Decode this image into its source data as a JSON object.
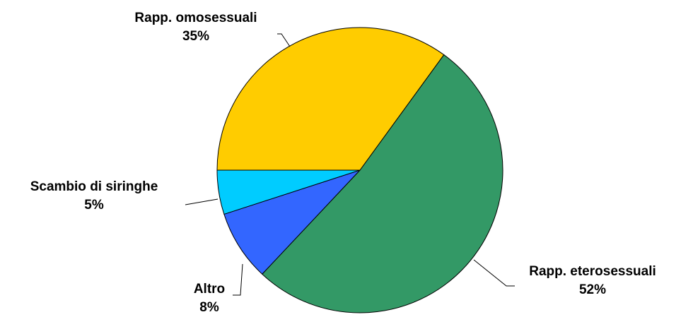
{
  "chart_data": {
    "type": "pie",
    "categories": [
      "Rapp. eterosessuali",
      "Altro",
      "Scambio di siringhe",
      "Rapp. omosessuali"
    ],
    "values": [
      52,
      8,
      5,
      35
    ],
    "value_labels": [
      "52%",
      "8%",
      "5%",
      "35%"
    ],
    "colors": [
      "#339966",
      "#3366ff",
      "#00ccff",
      "#ffcc00"
    ]
  }
}
